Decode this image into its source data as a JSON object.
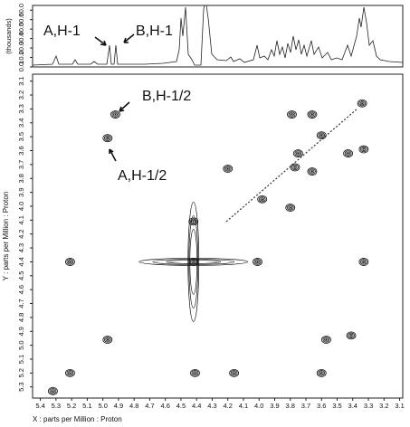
{
  "chart_data": {
    "type": "contour",
    "x_label": "X : parts per Million : Proton",
    "y_label": "Y : parts per Million : Proton",
    "top_label": "(thousands)",
    "xlim": [
      5.45,
      3.08
    ],
    "ylim": [
      3.05,
      5.38
    ],
    "xticks": [
      5.4,
      5.3,
      5.2,
      5.1,
      {
        "value": 5.0,
        "label": "5.0"
      },
      4.9,
      4.8,
      4.7,
      4.6,
      4.5,
      4.4,
      4.3,
      4.2,
      4.1,
      {
        "value": 4.0,
        "label": "4.0"
      },
      3.9,
      3.8,
      3.7,
      3.6,
      3.5,
      3.4,
      3.3,
      3.2,
      3.1
    ],
    "yticks": [
      3.1,
      3.2,
      3.3,
      3.4,
      3.5,
      3.6,
      3.7,
      3.8,
      3.9,
      {
        "value": 4.0,
        "label": "4.0"
      },
      4.1,
      4.2,
      4.3,
      4.4,
      4.5,
      4.6,
      4.7,
      4.8,
      4.9,
      {
        "value": 5.0,
        "label": "5.0"
      },
      5.1,
      5.2,
      5.3
    ],
    "top_ylim": [
      0,
      65
    ],
    "top_yticks": [
      {
        "value": 0,
        "label": "0.0"
      },
      {
        "value": 10,
        "label": "10.0"
      },
      {
        "value": 20,
        "label": "20.0"
      },
      {
        "value": 30,
        "label": "30.0"
      },
      {
        "value": 40,
        "label": "40.0"
      },
      {
        "value": 50,
        "label": "50.0"
      },
      {
        "value": 60,
        "label": "60.0"
      }
    ],
    "annotations": [
      "A,H-1",
      "B,H-1",
      "B,H-1/2",
      "A,H-1/2"
    ],
    "x": [
      4.92,
      4.97,
      4.42,
      4.97,
      5.21,
      5.32,
      4.01,
      4.42,
      3.98,
      3.8,
      3.34,
      3.75,
      3.6,
      3.43,
      3.77,
      3.66,
      3.57,
      3.41,
      4.16,
      4.41,
      3.33,
      5.21,
      3.79,
      3.66,
      3.33,
      4.2,
      3.6
    ],
    "y": [
      3.34,
      3.51,
      4.4,
      4.96,
      5.2,
      5.33,
      4.4,
      4.11,
      3.95,
      4.01,
      3.26,
      3.62,
      3.49,
      3.62,
      3.72,
      3.75,
      4.96,
      4.93,
      5.2,
      5.2,
      4.4,
      4.4,
      3.34,
      3.34,
      3.59,
      3.73,
      5.2
    ],
    "color": "#111111"
  }
}
